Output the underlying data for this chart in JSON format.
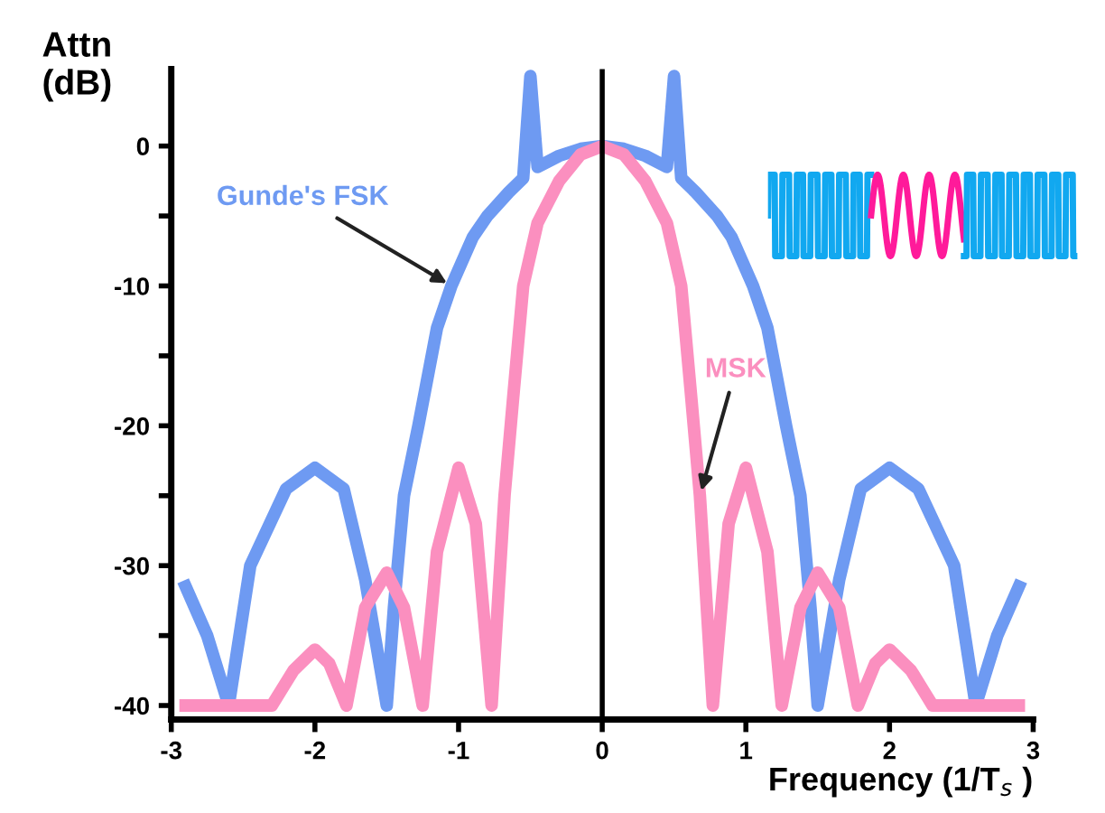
{
  "chart_data": {
    "type": "line",
    "xlabel": "Frequency (1/T$_{s}$ )",
    "ylabel": "Attn\n(dB)",
    "series": [
      {
        "name": "Gunde's FSK",
        "color": "#6e9af2",
        "x": [
          -2.9,
          -2.75,
          -2.6,
          -2.45,
          -2.2,
          -2.0,
          -1.8,
          -1.65,
          -1.5,
          -1.45,
          -1.38,
          -1.28,
          -1.15,
          -1.05,
          -0.9,
          -0.8,
          -0.65,
          -0.55,
          -0.5,
          -0.45,
          -0.3,
          -0.15,
          0,
          0.15,
          0.3,
          0.45,
          0.5,
          0.55,
          0.65,
          0.8,
          0.9,
          1.05,
          1.15,
          1.28,
          1.38,
          1.45,
          1.5,
          1.65,
          1.8,
          2.0,
          2.2,
          2.45,
          2.6,
          2.75,
          2.9
        ],
        "values": [
          -31.5,
          -35,
          -40,
          -30,
          -24.5,
          -23,
          -24.5,
          -31,
          -40,
          -33,
          -25,
          -20,
          -13,
          -10,
          -6.5,
          -5,
          -3.3,
          -2.3,
          5,
          -1.5,
          -0.7,
          -0.2,
          0,
          -0.2,
          -0.7,
          -1.5,
          5,
          -2.3,
          -3.3,
          -5,
          -6.5,
          -10,
          -13,
          -20,
          -25,
          -33,
          -40,
          -31,
          -24.5,
          -23,
          -24.5,
          -30,
          -40,
          -35,
          -31.5
        ]
      },
      {
        "name": "MSK",
        "color": "#fb8fbf",
        "x": [
          -2.9,
          -2.3,
          -2.15,
          -2.0,
          -1.9,
          -1.78,
          -1.65,
          -1.5,
          -1.38,
          -1.25,
          -1.15,
          -1.0,
          -0.88,
          -0.77,
          -0.68,
          -0.62,
          -0.55,
          -0.45,
          -0.3,
          -0.15,
          0,
          0.15,
          0.3,
          0.45,
          0.55,
          0.62,
          0.68,
          0.77,
          0.88,
          1.0,
          1.15,
          1.25,
          1.38,
          1.5,
          1.65,
          1.78,
          1.9,
          2.0,
          2.15,
          2.3,
          2.9
        ],
        "values": [
          -40,
          -40,
          -37.5,
          -36,
          -37,
          -40,
          -33,
          -30.5,
          -33,
          -40,
          -29,
          -23,
          -27,
          -40,
          -25,
          -18,
          -10,
          -5.5,
          -2.5,
          -0.6,
          0,
          -0.6,
          -2.5,
          -5.5,
          -10,
          -18,
          -25,
          -40,
          -27,
          -23,
          -29,
          -40,
          -33,
          -30.5,
          -33,
          -40,
          -37,
          -36,
          -37.5,
          -40,
          -40
        ]
      }
    ],
    "xlim": [
      -3,
      3
    ],
    "ylim": [
      -41,
      5.5
    ],
    "xticks": [
      -3,
      -2,
      -1,
      0,
      1,
      2,
      3
    ],
    "yticks": [
      0,
      {
        "value": -5,
        "label": null
      },
      -10,
      {
        "value": -15,
        "label": null
      },
      -20,
      {
        "value": -25,
        "label": null
      },
      -30,
      {
        "value": -35,
        "label": null
      },
      -40
    ],
    "ref_lines": [
      {
        "axis": "x",
        "value": 0,
        "color": "#000000"
      }
    ],
    "grid": false,
    "legend": false,
    "marker": "none",
    "line_style": "solid"
  }
}
